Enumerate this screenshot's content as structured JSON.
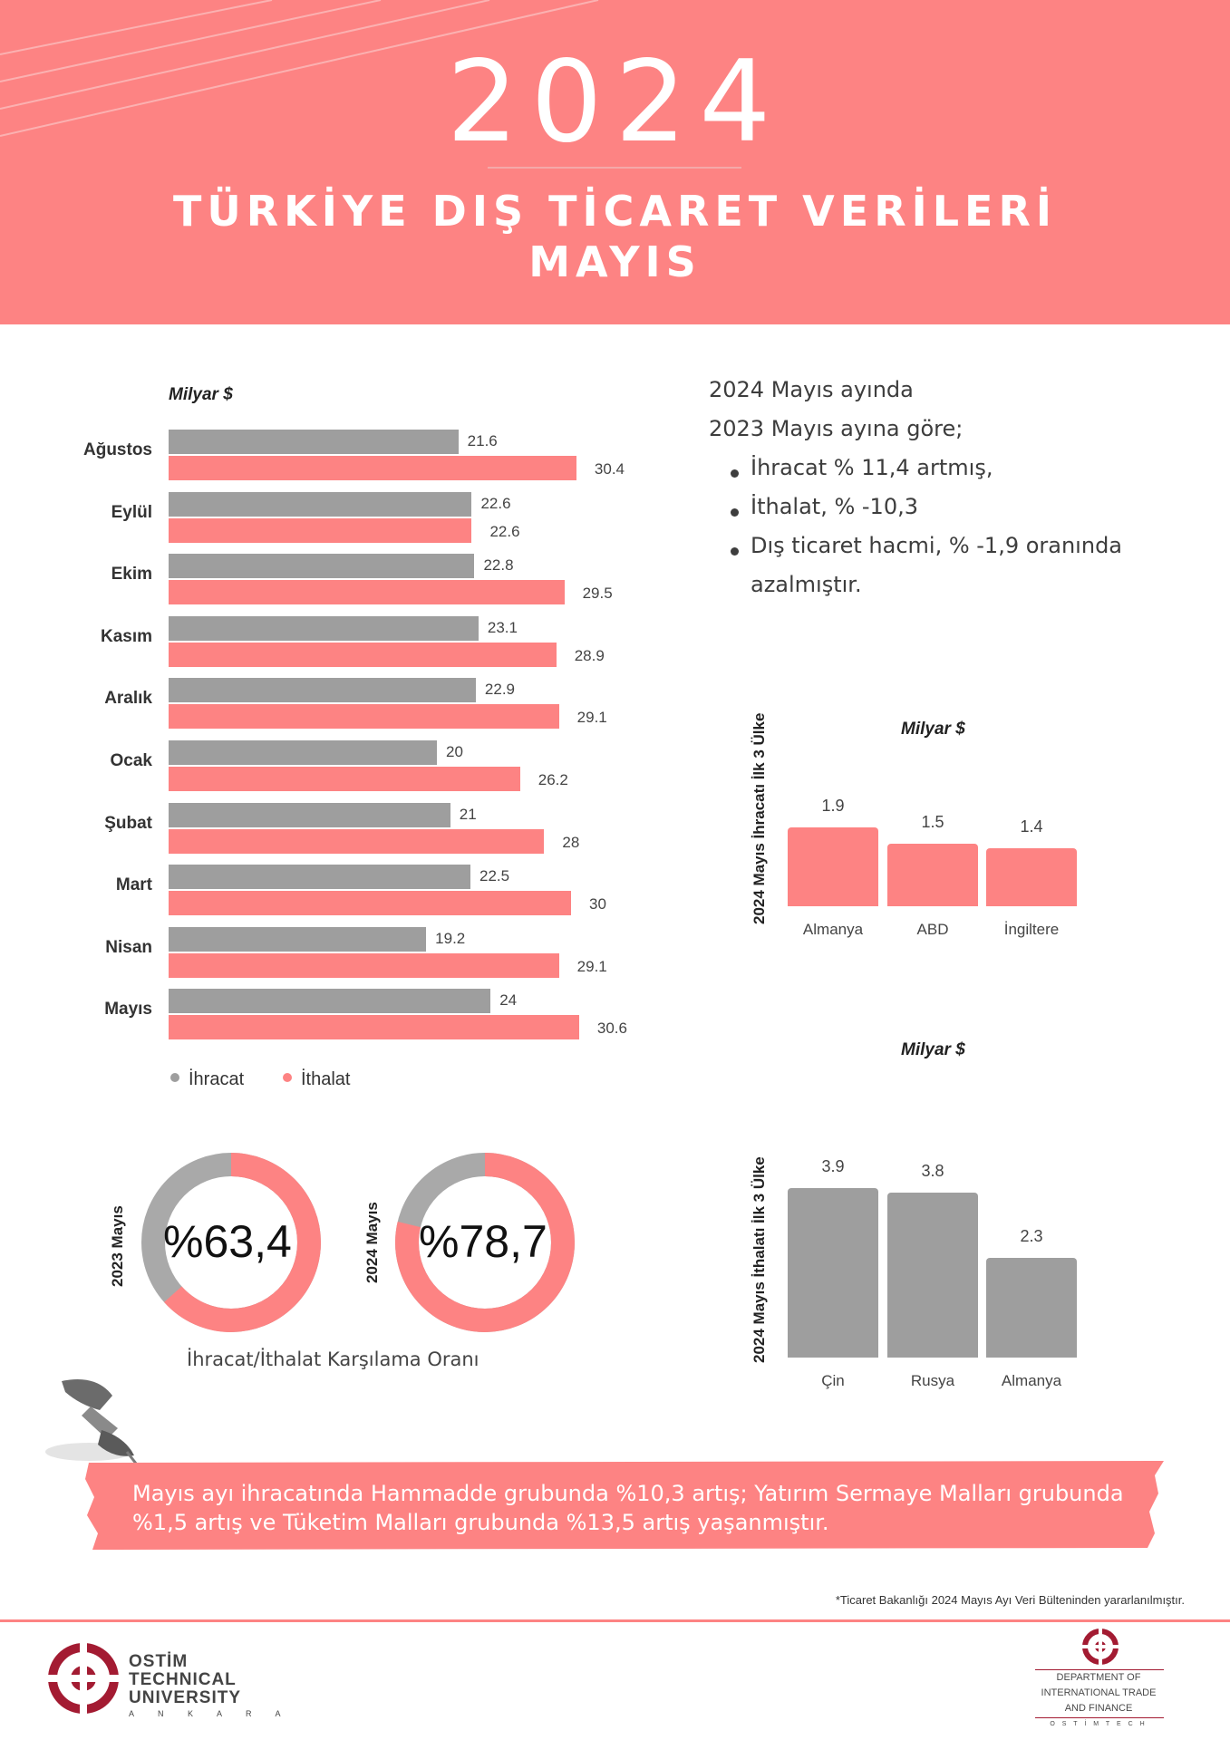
{
  "header": {
    "year": "2024",
    "title_line1": "TÜRKİYE DIŞ TİCARET VERİLERİ",
    "title_line2": "MAYIS",
    "color": "#FD8383"
  },
  "monthly_chart": {
    "unit": "Milyar $",
    "legend": {
      "export": "İhracat",
      "import": "İthalat"
    },
    "colors": {
      "export": "#9e9e9e",
      "import": "#FD8383"
    },
    "months": [
      {
        "label": "Ağustos",
        "export": 21.6,
        "import": 30.4
      },
      {
        "label": "Eylül",
        "export": 22.6,
        "import": 22.6
      },
      {
        "label": "Ekim",
        "export": 22.8,
        "import": 29.5
      },
      {
        "label": "Kasım",
        "export": 23.1,
        "import": 28.9
      },
      {
        "label": "Aralık",
        "export": 22.9,
        "import": 29.1
      },
      {
        "label": "Ocak",
        "export": 20,
        "import": 26.2
      },
      {
        "label": "Şubat",
        "export": 21,
        "import": 28
      },
      {
        "label": "Mart",
        "export": 22.5,
        "import": 30
      },
      {
        "label": "Nisan",
        "export": 19.2,
        "import": 29.1
      },
      {
        "label": "Mayıs",
        "export": 24,
        "import": 30.6
      }
    ]
  },
  "summary": {
    "line1": "2024  Mayıs ayında",
    "line2": "2023  Mayıs ayına göre;",
    "bullets": [
      "İhracat % 11,4 artmış,",
      "İthalat, % -10,3",
      "Dış ticaret hacmi, % -1,9 oranında"
    ],
    "bullet3_cont": "azalmıştır."
  },
  "export_top3": {
    "vertical_title": "2024 Mayıs İhracatı İlk 3 Ülke",
    "unit": "Milyar $",
    "color": "#FD8383",
    "bars": [
      {
        "label": "Almanya",
        "value": 1.9
      },
      {
        "label": "ABD",
        "value": 1.5
      },
      {
        "label": "İngiltere",
        "value": 1.4
      }
    ]
  },
  "import_top3": {
    "vertical_title": "2024 Mayıs İthalatı İlk 3 Ülke",
    "unit": "Milyar $",
    "color": "#9e9e9e",
    "bars": [
      {
        "label": "Çin",
        "value": 3.9
      },
      {
        "label": "Rusya",
        "value": 3.8
      },
      {
        "label": "Almanya",
        "value": 2.3
      }
    ]
  },
  "coverage": {
    "caption": "İhracat/İthalat Karşılama Oranı",
    "donuts": [
      {
        "year_label": "2023 Mayıs",
        "text": "%63,4",
        "ratio": 0.634
      },
      {
        "year_label": "2024 Mayıs",
        "text": "%78,7",
        "ratio": 0.787
      }
    ]
  },
  "banner": {
    "text": "Mayıs ayı ihracatında Hammadde grubunda %10,3 artış; Yatırım Sermaye Malları grubunda %1,5 artış ve Tüketim Malları grubunda %13,5 artış yaşanmıştır."
  },
  "footnote": "*Ticaret Bakanlığı 2024 Mayıs Ayı Veri Bülteninden yararlanılmıştır.",
  "footer": {
    "ostim": {
      "line1": "OSTİM",
      "line2": "TECHNICAL",
      "line3": "UNIVERSITY",
      "line4": "A N K A R A"
    },
    "dept": {
      "line1": "DEPARTMENT OF",
      "line2": "INTERNATIONAL TRADE",
      "line3": "AND FINANCE",
      "line4": "O S T İ M T E C H"
    },
    "brand_color": "#a31b32"
  }
}
